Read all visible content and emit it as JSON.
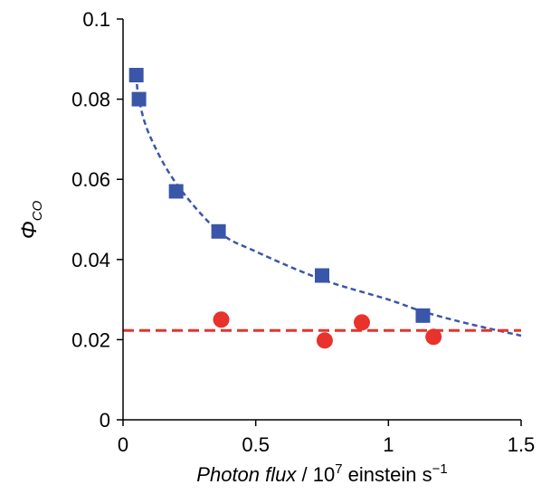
{
  "chart_data": {
    "type": "scatter",
    "title": "",
    "xlabel": {
      "italic_part": "Photon flux",
      "plain_part": " / 10",
      "superscript": "7",
      "unit": " einstein s",
      "unit_superscript": "−1"
    },
    "ylabel": {
      "symbol": "Φ",
      "subscript": "CO"
    },
    "xlim": [
      0,
      1.5
    ],
    "ylim": [
      0,
      0.1
    ],
    "x_ticks": [
      "0",
      "0.5",
      "1",
      "1.5"
    ],
    "y_ticks": [
      "0",
      "0.02",
      "0.04",
      "0.06",
      "0.08",
      "0.1"
    ],
    "x_tick_values": [
      0,
      0.5,
      1,
      1.5
    ],
    "y_tick_values": [
      0,
      0.02,
      0.04,
      0.06,
      0.08,
      0.1
    ],
    "grid": false,
    "series": [
      {
        "marker": "square",
        "color": "#3a56a8",
        "points": [
          {
            "x": 0.05,
            "y": 0.086
          },
          {
            "x": 0.06,
            "y": 0.08
          },
          {
            "x": 0.2,
            "y": 0.057
          },
          {
            "x": 0.36,
            "y": 0.047
          },
          {
            "x": 0.75,
            "y": 0.036
          },
          {
            "x": 1.13,
            "y": 0.026
          }
        ],
        "fit": {
          "style": "dashed",
          "color": "#3a56a8",
          "x_range": [
            0.05,
            1.5
          ],
          "curve": [
            {
              "x": 0.05,
              "y": 0.086
            },
            {
              "x": 0.06,
              "y": 0.08
            },
            {
              "x": 0.1,
              "y": 0.071
            },
            {
              "x": 0.2,
              "y": 0.059
            },
            {
              "x": 0.36,
              "y": 0.047
            },
            {
              "x": 0.5,
              "y": 0.042
            },
            {
              "x": 0.75,
              "y": 0.035
            },
            {
              "x": 1.0,
              "y": 0.03
            },
            {
              "x": 1.13,
              "y": 0.027
            },
            {
              "x": 1.3,
              "y": 0.024
            },
            {
              "x": 1.5,
              "y": 0.021
            }
          ]
        }
      },
      {
        "marker": "circle",
        "color": "#e8322b",
        "points": [
          {
            "x": 0.37,
            "y": 0.025
          },
          {
            "x": 0.76,
            "y": 0.0198
          },
          {
            "x": 0.9,
            "y": 0.0243
          },
          {
            "x": 1.17,
            "y": 0.0207
          }
        ],
        "fit": {
          "style": "dashed",
          "color": "#e8322b",
          "constant": 0.0223,
          "x_range": [
            0,
            1.5
          ]
        }
      }
    ]
  }
}
